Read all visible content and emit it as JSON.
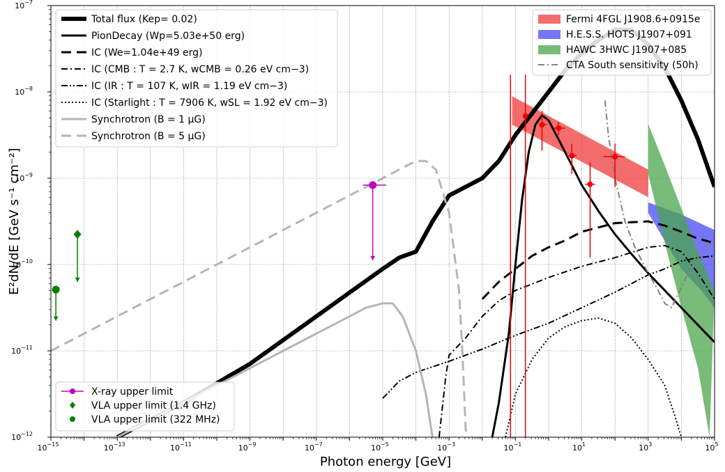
{
  "chart_data": {
    "type": "line",
    "xlabel": "Photon energy [GeV]",
    "ylabel": "E²dN/dE [GeV s⁻¹ cm⁻²]",
    "xscale": "log",
    "yscale": "log",
    "xlim": [
      1e-15,
      100000.0
    ],
    "ylim": [
      1e-12,
      1e-07
    ],
    "grid": true,
    "x_ticks": [
      {
        "exp": -15,
        "label": "10",
        "sup": "−15"
      },
      {
        "exp": -13,
        "label": "10",
        "sup": "−13"
      },
      {
        "exp": -11,
        "label": "10",
        "sup": "−11"
      },
      {
        "exp": -9,
        "label": "10",
        "sup": "−9"
      },
      {
        "exp": -7,
        "label": "10",
        "sup": "−7"
      },
      {
        "exp": -5,
        "label": "10",
        "sup": "−5"
      },
      {
        "exp": -3,
        "label": "10",
        "sup": "−3"
      },
      {
        "exp": -1,
        "label": "10",
        "sup": "−1"
      },
      {
        "exp": 1,
        "label": "10",
        "sup": "1"
      },
      {
        "exp": 3,
        "label": "10",
        "sup": "3"
      },
      {
        "exp": 5,
        "label": "10",
        "sup": "5"
      }
    ],
    "y_ticks": [
      {
        "exp": -12,
        "label": "10",
        "sup": "−12"
      },
      {
        "exp": -11,
        "label": "10",
        "sup": "−11"
      },
      {
        "exp": -10,
        "label": "10",
        "sup": "−10"
      },
      {
        "exp": -9,
        "label": "10",
        "sup": "−9"
      },
      {
        "exp": -8,
        "label": "10",
        "sup": "−8"
      },
      {
        "exp": -7,
        "label": "10",
        "sup": "−7"
      }
    ],
    "legend_upper_left": [
      "Total flux (Kep= 0.02)",
      "PionDecay (Wp=5.03e+50 erg)",
      "IC (We=1.04e+49 erg)",
      "IC (CMB : T = 2.7 K, wCMB = 0.26 eV cm−3)",
      "IC (IR : T = 107 K, wIR = 1.19 eV cm−3)",
      "IC (Starlight : T = 7906 K, wSL = 1.92 eV cm−3)",
      "Synchrotron (B = 1 μG)",
      "Synchrotron (B = 5 μG)"
    ],
    "legend_upper_right": [
      "Fermi 4FGL J1908.6+0915e",
      "H.E.S.S. HOTS J1907+091",
      "HAWC 3HWC J1907+085",
      "CTA South sensitivity (50h)"
    ],
    "legend_lower_left": [
      "X-ray upper limit",
      "VLA upper limit (1.4 GHz)",
      "VLA upper limit (322 MHz)"
    ],
    "series": [
      {
        "name": "Total flux (Kep= 0.02)",
        "color": "#000000",
        "width": 6,
        "dash": "",
        "points": [
          [
            -13.0,
            -12.0
          ],
          [
            -11.0,
            -11.6
          ],
          [
            -9.0,
            -11.15
          ],
          [
            -7.0,
            -10.6
          ],
          [
            -5.0,
            -10.05
          ],
          [
            -4.5,
            -9.92
          ],
          [
            -4.0,
            -9.85
          ],
          [
            -3.5,
            -9.5
          ],
          [
            -3.0,
            -9.2
          ],
          [
            -2.0,
            -9.0
          ],
          [
            -1.5,
            -8.8
          ],
          [
            -1.0,
            -8.5
          ],
          [
            -0.5,
            -8.25
          ],
          [
            0.0,
            -8.0
          ],
          [
            0.5,
            -7.75
          ],
          [
            1.0,
            -7.55
          ],
          [
            1.5,
            -7.4
          ],
          [
            2.0,
            -7.28
          ],
          [
            2.5,
            -7.28
          ],
          [
            3.0,
            -7.45
          ],
          [
            3.5,
            -7.72
          ],
          [
            4.0,
            -8.1
          ],
          [
            4.5,
            -8.55
          ],
          [
            5.0,
            -9.1
          ]
        ]
      },
      {
        "name": "PionDecay (Wp=5.03e+50 erg)",
        "color": "#000000",
        "width": 3,
        "dash": "",
        "points": [
          [
            -1.7,
            -12.0
          ],
          [
            -1.5,
            -11.6
          ],
          [
            -1.2,
            -10.8
          ],
          [
            -1.0,
            -10.0
          ],
          [
            -0.8,
            -9.25
          ],
          [
            -0.6,
            -8.7
          ],
          [
            -0.4,
            -8.38
          ],
          [
            -0.2,
            -8.27
          ],
          [
            0.0,
            -8.33
          ],
          [
            0.3,
            -8.55
          ],
          [
            0.7,
            -8.85
          ],
          [
            1.0,
            -9.08
          ],
          [
            1.5,
            -9.38
          ],
          [
            2.0,
            -9.65
          ],
          [
            2.5,
            -9.88
          ],
          [
            3.0,
            -10.1
          ],
          [
            3.5,
            -10.3
          ],
          [
            4.0,
            -10.5
          ],
          [
            4.5,
            -10.7
          ],
          [
            5.0,
            -10.9
          ]
        ]
      },
      {
        "name": "IC (We=1.04e+49 erg)",
        "color": "#000000",
        "width": 3,
        "dash": "14,8",
        "points": [
          [
            -2.0,
            -10.4
          ],
          [
            -1.5,
            -10.2
          ],
          [
            -1.0,
            -10.05
          ],
          [
            -0.5,
            -9.9
          ],
          [
            0.0,
            -9.8
          ],
          [
            0.5,
            -9.72
          ],
          [
            1.0,
            -9.62
          ],
          [
            2.0,
            -9.52
          ],
          [
            3.0,
            -9.5
          ],
          [
            3.5,
            -9.55
          ],
          [
            4.0,
            -9.62
          ],
          [
            4.5,
            -9.7
          ],
          [
            5.0,
            -9.75
          ]
        ]
      },
      {
        "name": "IC (CMB : T = 2.7 K, wCMB = 0.26 eV cm−3)",
        "color": "#000000",
        "width": 2,
        "dash": "9,4,2,4",
        "points": [
          [
            -3.3,
            -12.0
          ],
          [
            -3.1,
            -11.3
          ],
          [
            -3.0,
            -11.05
          ],
          [
            -2.5,
            -10.85
          ],
          [
            -2.0,
            -10.6
          ],
          [
            -1.5,
            -10.42
          ],
          [
            -1.0,
            -10.3
          ],
          [
            0.0,
            -10.15
          ],
          [
            1.0,
            -10.02
          ],
          [
            2.0,
            -9.92
          ],
          [
            3.0,
            -9.8
          ],
          [
            3.5,
            -9.78
          ],
          [
            4.0,
            -9.85
          ],
          [
            4.5,
            -10.1
          ],
          [
            5.0,
            -10.4
          ]
        ]
      },
      {
        "name": "IC (IR : T = 107 K, wIR = 1.19 eV cm−3)",
        "color": "#000000",
        "width": 2,
        "dash": "9,3,2,3,2,3",
        "points": [
          [
            -5.0,
            -11.55
          ],
          [
            -4.5,
            -11.35
          ],
          [
            -4.0,
            -11.25
          ],
          [
            -3.0,
            -11.12
          ],
          [
            -2.0,
            -10.98
          ],
          [
            -1.0,
            -10.82
          ],
          [
            0.0,
            -10.68
          ],
          [
            1.0,
            -10.5
          ],
          [
            2.0,
            -10.32
          ],
          [
            3.0,
            -10.12
          ],
          [
            3.5,
            -10.05
          ],
          [
            4.0,
            -9.96
          ],
          [
            4.5,
            -9.92
          ],
          [
            5.0,
            -9.9
          ]
        ]
      },
      {
        "name": "IC (Starlight : T = 7906 K, wSL = 1.92 eV cm−3)",
        "color": "#000000",
        "width": 2,
        "dash": "2,3",
        "points": [
          [
            -1.3,
            -12.0
          ],
          [
            -1.0,
            -11.5
          ],
          [
            -0.5,
            -11.1
          ],
          [
            0.0,
            -10.85
          ],
          [
            0.5,
            -10.72
          ],
          [
            1.0,
            -10.65
          ],
          [
            1.5,
            -10.62
          ],
          [
            2.0,
            -10.68
          ],
          [
            2.5,
            -10.85
          ],
          [
            3.0,
            -11.1
          ],
          [
            3.5,
            -11.4
          ],
          [
            3.8,
            -11.75
          ],
          [
            4.0,
            -12.0
          ]
        ]
      },
      {
        "name": "Synchrotron (B = 1 μG)",
        "color": "#b5b5b5",
        "width": 3,
        "dash": "",
        "points": [
          [
            -13.0,
            -12.0
          ],
          [
            -12.0,
            -11.8
          ],
          [
            -11.0,
            -11.6
          ],
          [
            -10.0,
            -11.4
          ],
          [
            -9.0,
            -11.2
          ],
          [
            -8.0,
            -11.0
          ],
          [
            -7.0,
            -10.8
          ],
          [
            -6.0,
            -10.6
          ],
          [
            -5.5,
            -10.5
          ],
          [
            -5.0,
            -10.45
          ],
          [
            -4.7,
            -10.45
          ],
          [
            -4.4,
            -10.6
          ],
          [
            -4.0,
            -11.0
          ],
          [
            -3.7,
            -11.5
          ],
          [
            -3.5,
            -12.0
          ]
        ]
      },
      {
        "name": "Synchrotron (B = 5 μG)",
        "color": "#b5b5b5",
        "width": 3,
        "dash": "14,8",
        "points": [
          [
            -15.0,
            -11.0
          ],
          [
            -13.0,
            -10.6
          ],
          [
            -11.0,
            -10.2
          ],
          [
            -9.0,
            -9.8
          ],
          [
            -7.0,
            -9.4
          ],
          [
            -5.0,
            -9.0
          ],
          [
            -4.5,
            -8.9
          ],
          [
            -4.0,
            -8.8
          ],
          [
            -3.7,
            -8.8
          ],
          [
            -3.4,
            -8.9
          ],
          [
            -3.0,
            -9.4
          ],
          [
            -2.7,
            -10.3
          ],
          [
            -2.6,
            -11.0
          ],
          [
            -2.5,
            -11.9
          ],
          [
            -2.45,
            -12.0
          ]
        ]
      },
      {
        "name": "CTA South sensitivity (50h)",
        "color": "#808080",
        "width": 2,
        "dash": "9,4,2,4",
        "points": [
          [
            1.7,
            -8.1
          ],
          [
            1.8,
            -8.5
          ],
          [
            2.0,
            -9.0
          ],
          [
            2.3,
            -9.5
          ],
          [
            2.6,
            -9.8
          ],
          [
            3.0,
            -10.1
          ],
          [
            3.3,
            -10.3
          ],
          [
            3.5,
            -10.45
          ],
          [
            3.7,
            -10.5
          ],
          [
            3.9,
            -10.35
          ],
          [
            4.2,
            -10.1
          ],
          [
            4.6,
            -9.85
          ],
          [
            5.0,
            -9.7
          ]
        ]
      }
    ],
    "bands": [
      {
        "name": "Fermi 4FGL J1908.6+0915e",
        "color": "#f03c3c",
        "opacity": 0.75,
        "upper": [
          [
            -1.1,
            -8.05
          ],
          [
            3.0,
            -8.9
          ]
        ],
        "lower": [
          [
            -1.1,
            -8.38
          ],
          [
            3.0,
            -9.22
          ]
        ]
      },
      {
        "name": "H.E.S.S. HOTS J1907+091",
        "color": "#3c3cf5",
        "opacity": 0.7,
        "upper": [
          [
            3.0,
            -9.28
          ],
          [
            4.0,
            -9.42
          ],
          [
            5.0,
            -9.6
          ]
        ],
        "lower": [
          [
            3.0,
            -9.4
          ],
          [
            4.0,
            -10.05
          ],
          [
            4.6,
            -10.3
          ],
          [
            5.0,
            -10.5
          ]
        ]
      },
      {
        "name": "HAWC 3HWC J1907+085",
        "color": "#4ca64c",
        "opacity": 0.75,
        "upper": [
          [
            3.0,
            -8.37
          ],
          [
            3.5,
            -8.85
          ],
          [
            4.0,
            -9.35
          ],
          [
            4.5,
            -9.85
          ],
          [
            5.0,
            -10.3
          ]
        ],
        "lower": [
          [
            3.0,
            -8.95
          ],
          [
            3.5,
            -9.75
          ],
          [
            4.0,
            -10.5
          ],
          [
            4.5,
            -11.2
          ],
          [
            4.85,
            -12.0
          ]
        ]
      }
    ],
    "fermi_points": [
      {
        "x": -0.7,
        "y": -8.28,
        "xlo": -0.72,
        "xhi": -0.68,
        "ylo": -12.0,
        "yhi": -7.8
      },
      {
        "x": -0.2,
        "y": -8.38,
        "xlo": -0.3,
        "xhi": -0.05,
        "ylo": -8.68,
        "yhi": -8.22
      },
      {
        "x": 0.3,
        "y": -8.42,
        "xlo": 0.15,
        "xhi": 0.5,
        "ylo": -8.5,
        "yhi": -8.35
      },
      {
        "x": 0.7,
        "y": -8.74,
        "xlo": 0.55,
        "xhi": 0.85,
        "ylo": -8.95,
        "yhi": -8.6
      },
      {
        "x": 1.25,
        "y": -9.07,
        "xlo": 1.1,
        "xhi": 1.4,
        "ylo": -9.92,
        "yhi": -8.82
      },
      {
        "x": 2.0,
        "y": -8.75,
        "xlo": 1.65,
        "xhi": 2.3,
        "ylo": -9.1,
        "yhi": -8.6
      }
    ],
    "fermi_vline": {
      "x": -1.15,
      "ylo": -12.0,
      "yhi": -7.8
    },
    "upper_limits": [
      {
        "name": "X-ray upper limit",
        "color": "#c000c0",
        "marker": "circle",
        "x": -5.3,
        "y": -9.08,
        "xlo": -5.6,
        "xhi": -4.9,
        "arrow_to": -9.95
      },
      {
        "name": "VLA upper limit (1.4 GHz)",
        "color": "#008000",
        "marker": "diamond",
        "x": -14.2,
        "y": -9.65,
        "arrow_to": -10.2
      },
      {
        "name": "VLA upper limit (322 MHz)",
        "color": "#008000",
        "marker": "circle",
        "x": -14.85,
        "y": -10.29,
        "arrow_to": -10.65
      }
    ]
  }
}
